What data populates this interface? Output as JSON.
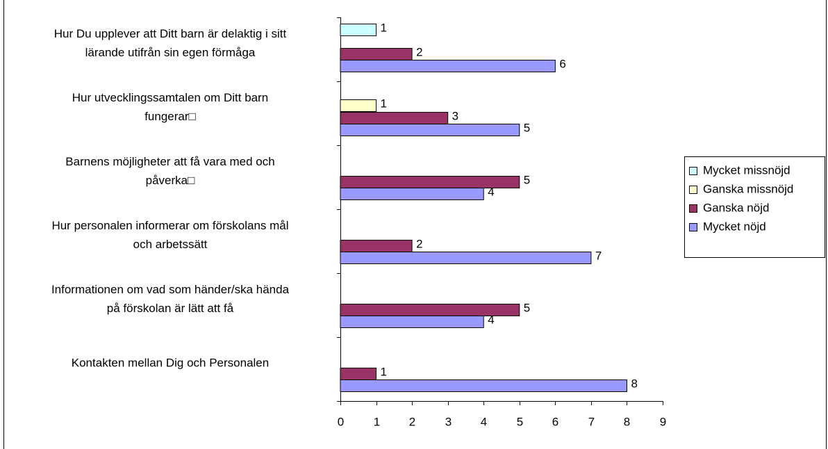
{
  "chart_data": {
    "type": "bar",
    "orientation": "horizontal",
    "categories": [
      "Hur Du upplever att Ditt barn är  delaktig i sitt\nlärande utifrån sin  egen förmåga",
      "Hur utvecklingssamtalen om Ditt  barn\nfungerar□",
      "Barnens möjligheter att få vara  med och\npåverka□",
      "Hur personalen informerar om  förskolans mål\noch arbetssätt",
      "Informationen om vad som  händer/ska hända\npå förskolan  är lätt att få",
      "Kontakten mellan Dig och  Personalen"
    ],
    "series": [
      {
        "name": "Mycket missnöjd",
        "color": "#ccffff",
        "values": [
          1,
          null,
          null,
          null,
          null,
          null
        ]
      },
      {
        "name": "Ganska missnöjd",
        "color": "#ffffcc",
        "values": [
          null,
          1,
          null,
          null,
          null,
          null
        ]
      },
      {
        "name": "Ganska nöjd",
        "color": "#993366",
        "values": [
          2,
          3,
          5,
          2,
          5,
          1
        ]
      },
      {
        "name": "Mycket nöjd",
        "color": "#9999ff",
        "values": [
          6,
          5,
          4,
          7,
          4,
          8
        ]
      }
    ],
    "xlim": [
      0,
      9
    ],
    "xticks": [
      0,
      1,
      2,
      3,
      4,
      5,
      6,
      7,
      8,
      9
    ],
    "legend": "right"
  }
}
